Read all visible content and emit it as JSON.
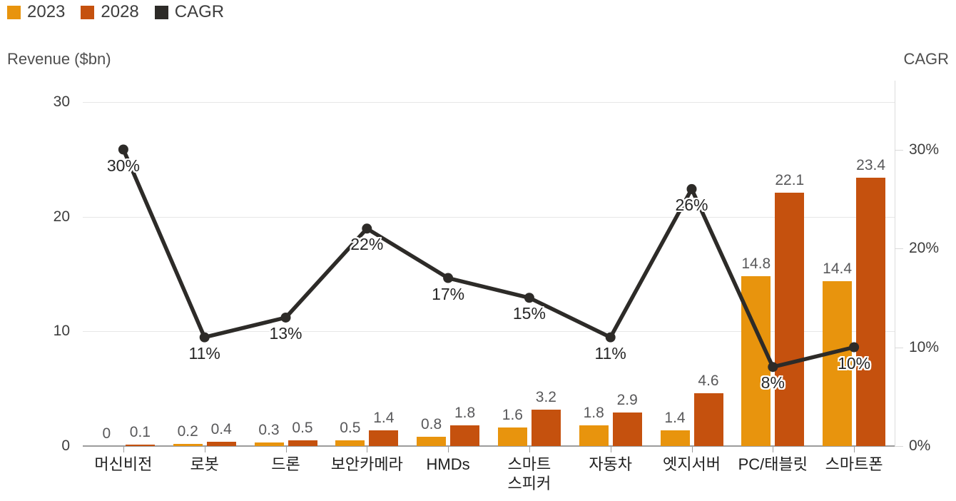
{
  "legend": [
    {
      "label": "2023",
      "color": "#E8940D"
    },
    {
      "label": "2028",
      "color": "#C5510E"
    },
    {
      "label": "CAGR",
      "color": "#2D2B28"
    }
  ],
  "chart_data": {
    "type": "combo-bar-line",
    "categories": [
      "머신비전",
      "로봇",
      "드론",
      "보안카메라",
      "HMDs",
      "스마트 스피커",
      "자동차",
      "엣지서버",
      "PC/태블릿",
      "스마트폰"
    ],
    "series": [
      {
        "name": "2023",
        "color": "#E8940D",
        "values": [
          0,
          0.2,
          0.3,
          0.5,
          0.8,
          1.6,
          1.8,
          1.4,
          14.8,
          14.4
        ],
        "value_labels": [
          "0",
          "0.2",
          "0.3",
          "0.5",
          "0.8",
          "1.6",
          "1.8",
          "1.4",
          "14.8",
          "14.4"
        ]
      },
      {
        "name": "2028",
        "color": "#C5510E",
        "values": [
          0.1,
          0.4,
          0.5,
          1.4,
          1.8,
          3.2,
          2.9,
          4.6,
          22.1,
          23.4
        ],
        "value_labels": [
          "0.1",
          "0.4",
          "0.5",
          "1.4",
          "1.8",
          "3.2",
          "2.9",
          "4.6",
          "22.1",
          "23.4"
        ]
      }
    ],
    "line_series": {
      "name": "CAGR",
      "color": "#2D2B28",
      "values_pct": [
        30,
        11,
        13,
        22,
        17,
        15,
        11,
        26,
        8,
        10
      ],
      "labels": [
        "30%",
        "11%",
        "13%",
        "22%",
        "17%",
        "15%",
        "11%",
        "26%",
        "8%",
        "10%"
      ]
    },
    "left_axis": {
      "title": "Revenue ($bn)",
      "ticks": [
        0,
        10,
        20,
        30
      ],
      "tick_labels": [
        "0",
        "10",
        "20",
        "30"
      ],
      "range": [
        0,
        30
      ]
    },
    "right_axis": {
      "title": "CAGR",
      "ticks": [
        0,
        10,
        20,
        30
      ],
      "tick_labels": [
        "0%",
        "10%",
        "20%",
        "30%"
      ],
      "range": [
        0,
        30
      ]
    },
    "grid": "horizontal",
    "legend_position": "top-left"
  }
}
